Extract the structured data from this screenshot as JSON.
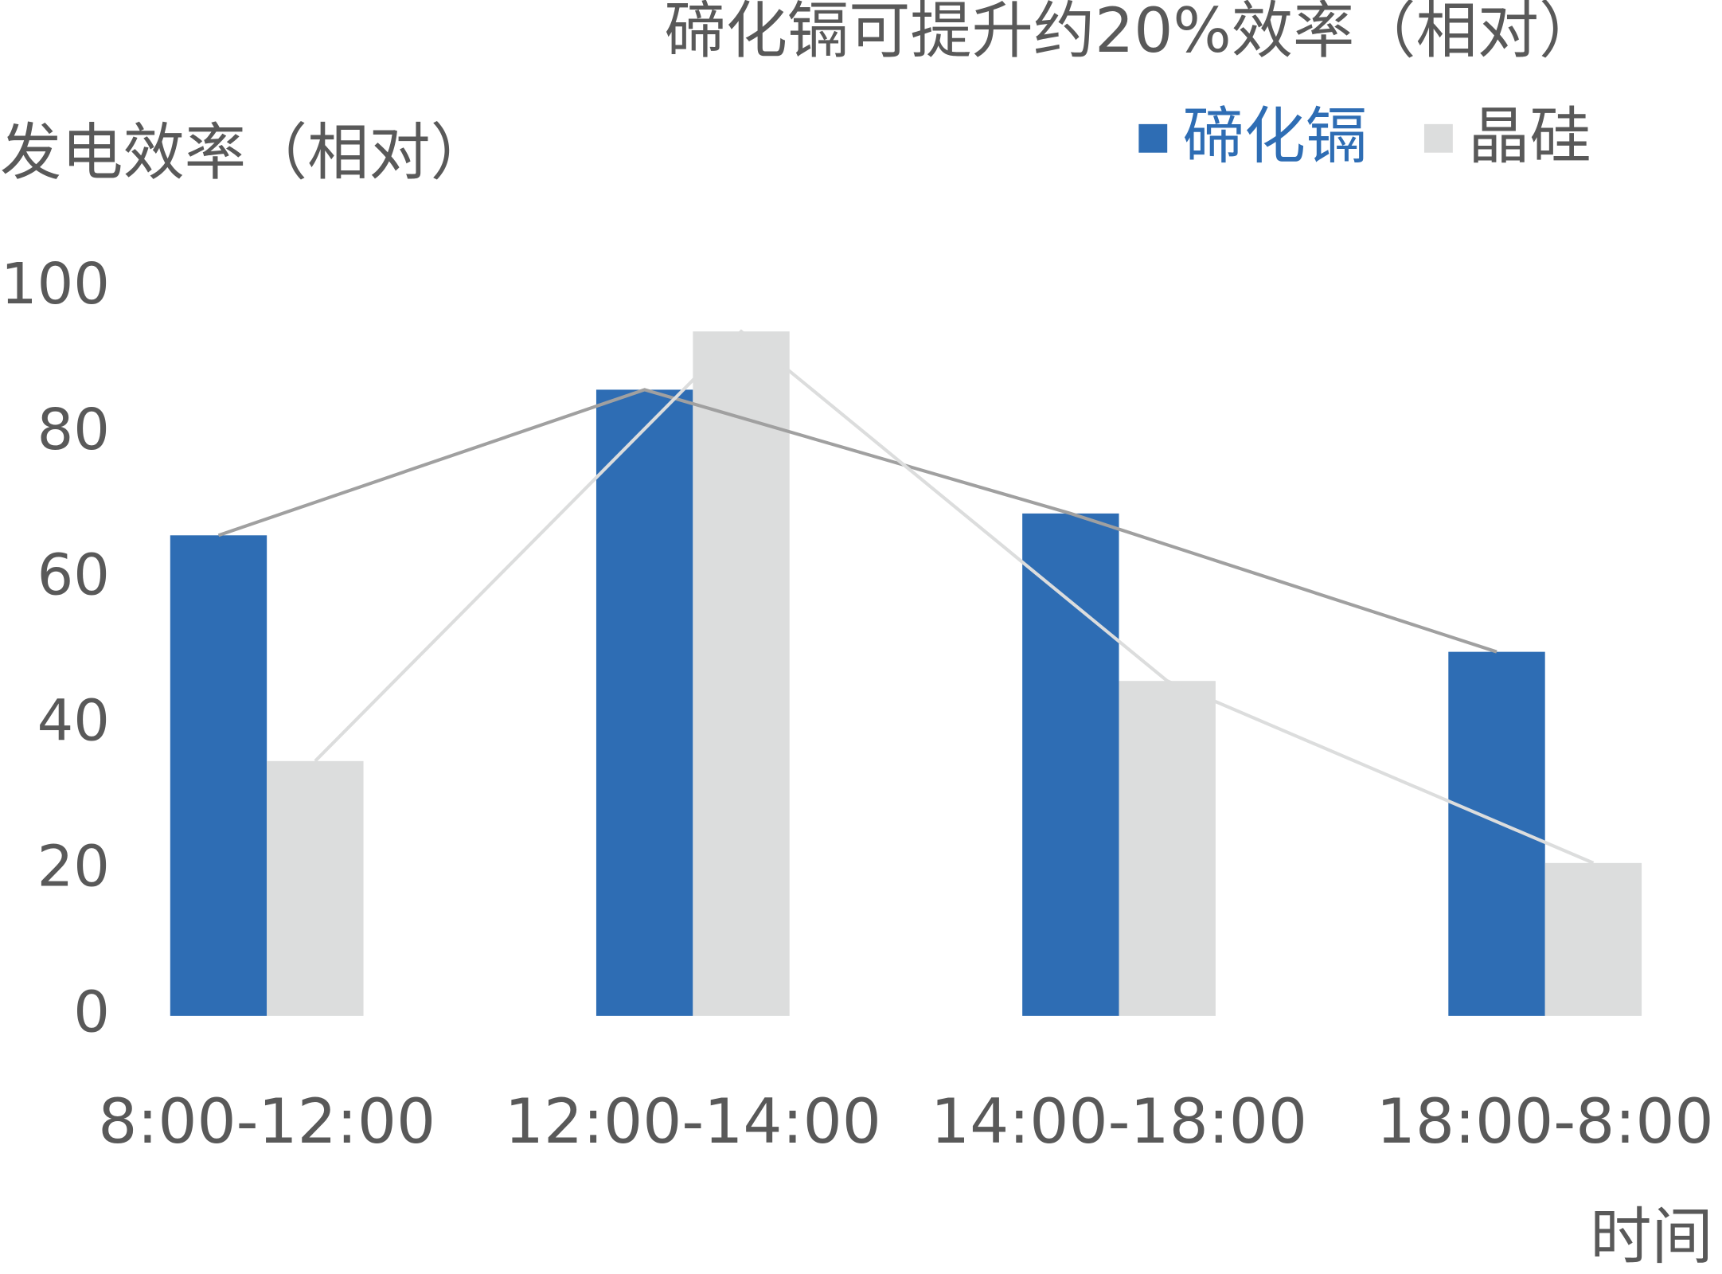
{
  "chart_data": {
    "type": "bar",
    "title": "碲化镉可提升约20%效率（相对）",
    "y_label": "发电效率（相对）",
    "x_label": "时间",
    "categories": [
      "8:00-12:00",
      "12:00-14:00",
      "14:00-18:00",
      "18:00-8:00"
    ],
    "series": [
      {
        "name": "碲化镉",
        "color": "#2e6db4",
        "line_color": "#a0a0a0",
        "values": [
          66,
          86,
          69,
          50
        ]
      },
      {
        "name": "晶硅",
        "color": "#dcdddd",
        "line_color": "#dcdddd",
        "values": [
          35,
          94,
          46,
          21
        ]
      }
    ],
    "ylim": [
      0,
      100
    ],
    "yticks": [
      0,
      20,
      40,
      60,
      80,
      100
    ],
    "grid": false,
    "legend": "top-right"
  }
}
